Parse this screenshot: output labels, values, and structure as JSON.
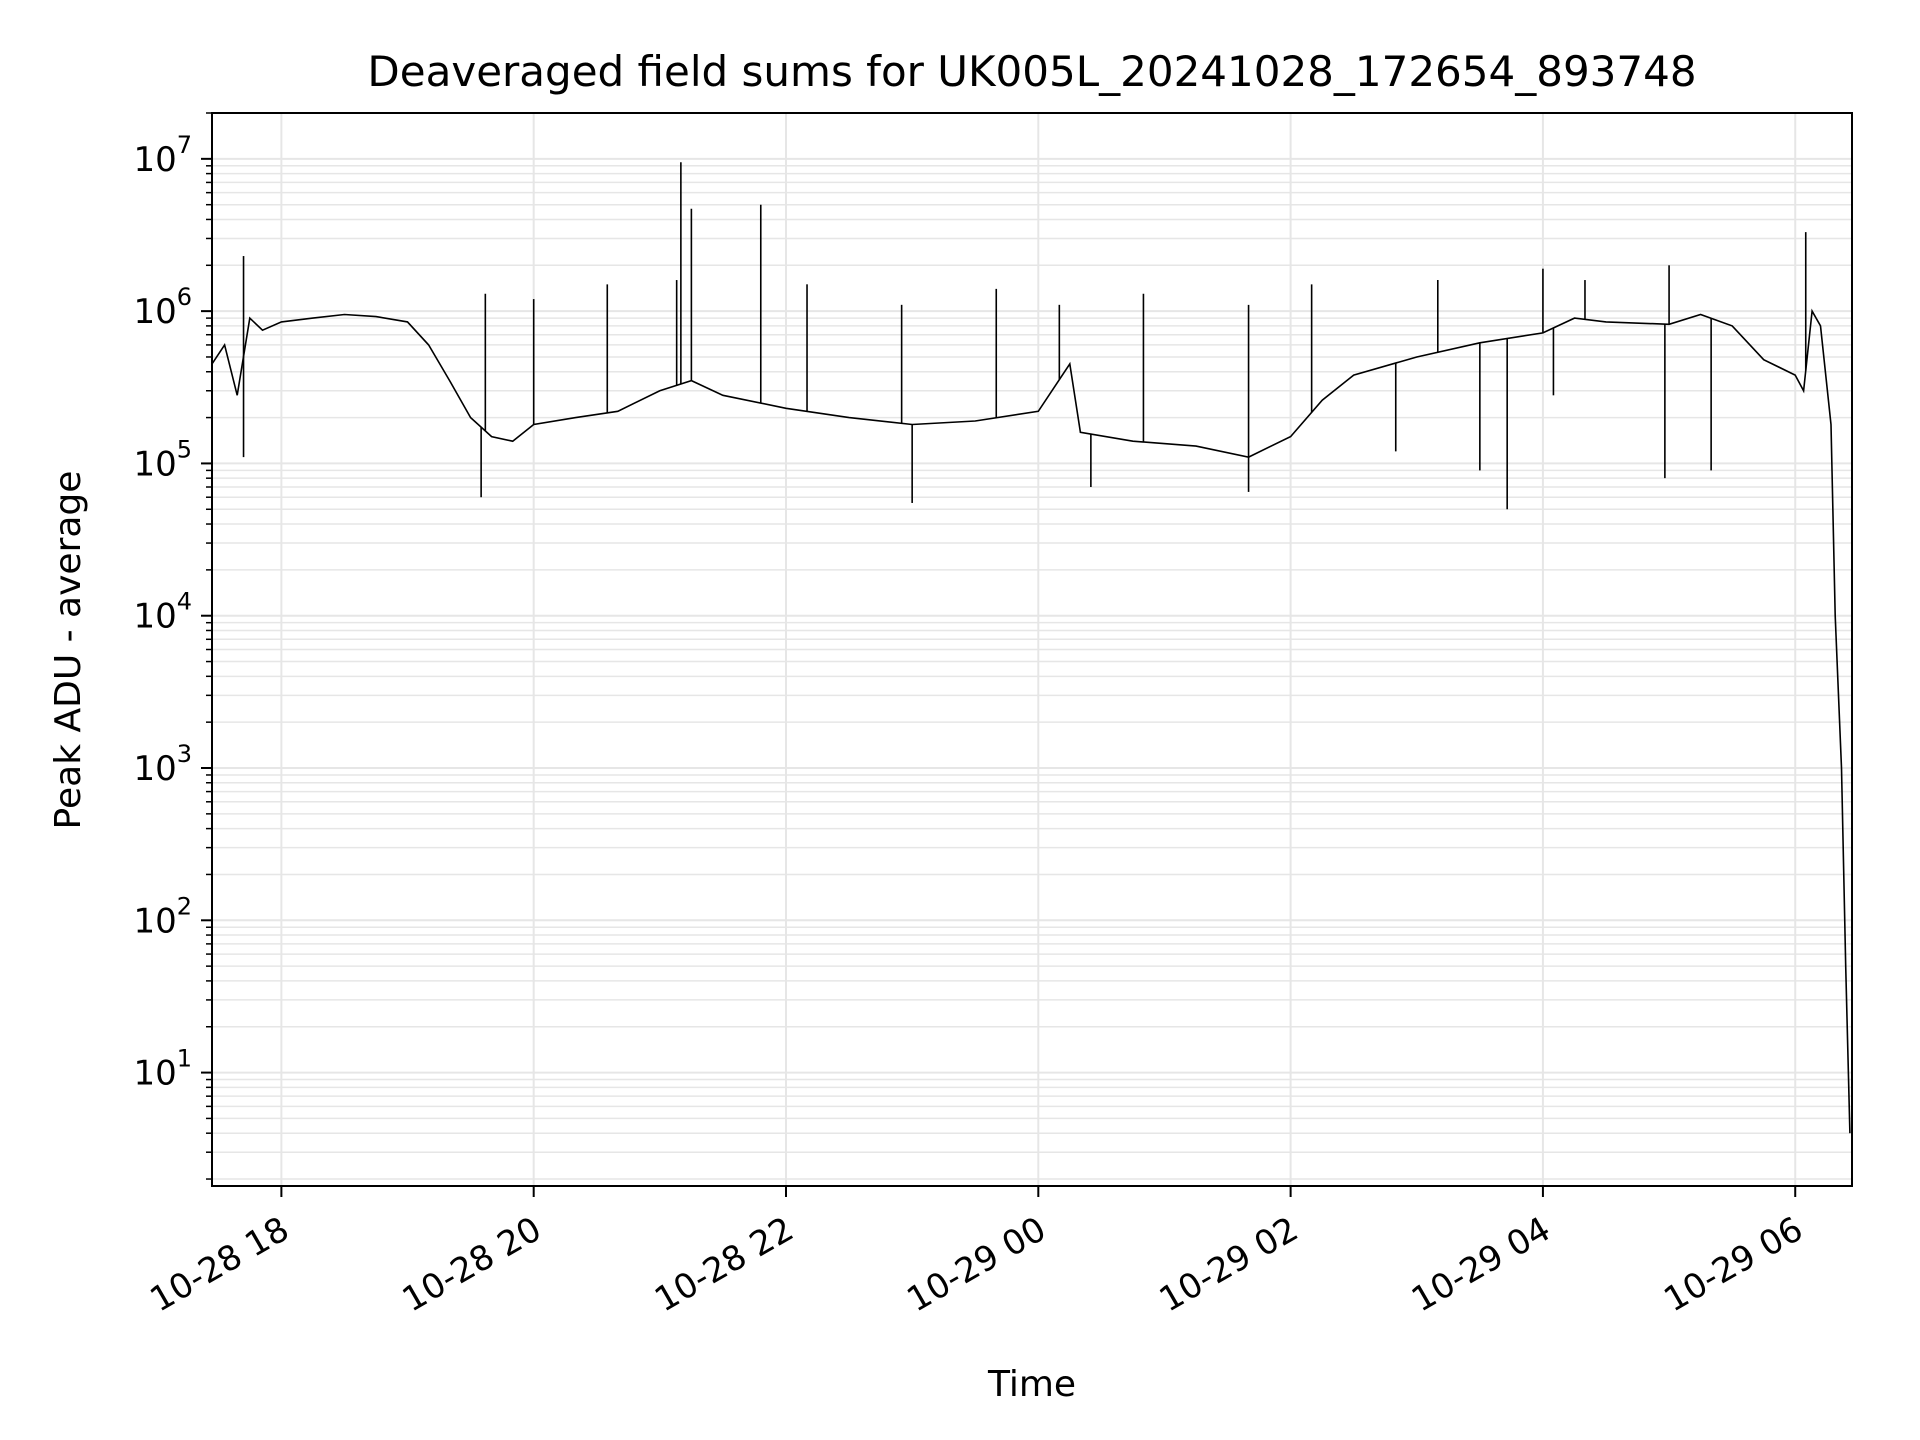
{
  "chart_data": {
    "type": "line",
    "title": "Deaveraged field sums for UK005L_20241028_172654_893748",
    "xlabel": "Time",
    "ylabel": "Peak ADU - average",
    "yscale": "log",
    "grid": true,
    "line_color": "#000000",
    "grid_color": "#e6e6e6",
    "xlim": [
      "2024-10-28 17:27",
      "2024-10-29 06:27"
    ],
    "ylim": [
      1.8,
      20000000
    ],
    "x_ticks": [
      {
        "t": "2024-10-28 18:00",
        "label": "10-28 18"
      },
      {
        "t": "2024-10-28 20:00",
        "label": "10-28 20"
      },
      {
        "t": "2024-10-28 22:00",
        "label": "10-28 22"
      },
      {
        "t": "2024-10-29 00:00",
        "label": "10-29 00"
      },
      {
        "t": "2024-10-29 02:00",
        "label": "10-29 02"
      },
      {
        "t": "2024-10-29 04:00",
        "label": "10-29 04"
      },
      {
        "t": "2024-10-29 06:00",
        "label": "10-29 06"
      }
    ],
    "y_ticks": [
      {
        "value": 10,
        "base": "10",
        "exp": "1"
      },
      {
        "value": 100,
        "base": "10",
        "exp": "2"
      },
      {
        "value": 1000,
        "base": "10",
        "exp": "3"
      },
      {
        "value": 10000,
        "base": "10",
        "exp": "4"
      },
      {
        "value": 100000,
        "base": "10",
        "exp": "5"
      },
      {
        "value": 1000000,
        "base": "10",
        "exp": "6"
      },
      {
        "value": 10000000,
        "base": "10",
        "exp": "7"
      }
    ],
    "series": [
      {
        "points": [
          [
            "2024-10-28 17:27",
            450000
          ],
          [
            "2024-10-28 17:33",
            600000
          ],
          [
            "2024-10-28 17:39",
            280000
          ],
          [
            "2024-10-28 17:45",
            900000
          ],
          [
            "2024-10-28 17:51",
            750000
          ],
          [
            "2024-10-28 18:00",
            850000
          ],
          [
            "2024-10-28 18:15",
            900000
          ],
          [
            "2024-10-28 18:30",
            950000
          ],
          [
            "2024-10-28 18:45",
            920000
          ],
          [
            "2024-10-28 19:00",
            850000
          ],
          [
            "2024-10-28 19:10",
            600000
          ],
          [
            "2024-10-28 19:20",
            350000
          ],
          [
            "2024-10-28 19:30",
            200000
          ],
          [
            "2024-10-28 19:40",
            150000
          ],
          [
            "2024-10-28 19:50",
            140000
          ],
          [
            "2024-10-28 20:00",
            180000
          ],
          [
            "2024-10-28 20:20",
            200000
          ],
          [
            "2024-10-28 20:40",
            220000
          ],
          [
            "2024-10-28 21:00",
            300000
          ],
          [
            "2024-10-28 21:15",
            350000
          ],
          [
            "2024-10-28 21:30",
            280000
          ],
          [
            "2024-10-28 22:00",
            230000
          ],
          [
            "2024-10-28 22:30",
            200000
          ],
          [
            "2024-10-28 23:00",
            180000
          ],
          [
            "2024-10-28 23:30",
            190000
          ],
          [
            "2024-10-29 00:00",
            220000
          ],
          [
            "2024-10-29 00:15",
            450000
          ],
          [
            "2024-10-29 00:20",
            160000
          ],
          [
            "2024-10-29 00:45",
            140000
          ],
          [
            "2024-10-29 01:15",
            130000
          ],
          [
            "2024-10-29 01:40",
            110000
          ],
          [
            "2024-10-29 02:00",
            150000
          ],
          [
            "2024-10-29 02:15",
            260000
          ],
          [
            "2024-10-29 02:30",
            380000
          ],
          [
            "2024-10-29 03:00",
            500000
          ],
          [
            "2024-10-29 03:30",
            620000
          ],
          [
            "2024-10-29 04:00",
            720000
          ],
          [
            "2024-10-29 04:15",
            900000
          ],
          [
            "2024-10-29 04:30",
            850000
          ],
          [
            "2024-10-29 05:00",
            820000
          ],
          [
            "2024-10-29 05:15",
            950000
          ],
          [
            "2024-10-29 05:30",
            800000
          ],
          [
            "2024-10-29 05:45",
            480000
          ],
          [
            "2024-10-29 06:00",
            380000
          ],
          [
            "2024-10-29 06:04",
            300000
          ],
          [
            "2024-10-29 06:08",
            1000000
          ],
          [
            "2024-10-29 06:12",
            800000
          ],
          [
            "2024-10-29 06:17",
            180000
          ],
          [
            "2024-10-29 06:19",
            10000
          ],
          [
            "2024-10-29 06:22",
            1000
          ],
          [
            "2024-10-29 06:24",
            50
          ],
          [
            "2024-10-29 06:26",
            4
          ]
        ]
      }
    ],
    "spikes": [
      [
        "2024-10-28 17:42",
        2300000
      ],
      [
        "2024-10-28 19:37",
        1300000
      ],
      [
        "2024-10-28 20:00",
        1200000
      ],
      [
        "2024-10-28 20:35",
        1500000
      ],
      [
        "2024-10-28 21:08",
        1600000
      ],
      [
        "2024-10-28 21:10",
        9500000
      ],
      [
        "2024-10-28 21:15",
        4700000
      ],
      [
        "2024-10-28 21:48",
        5000000
      ],
      [
        "2024-10-28 22:10",
        1500000
      ],
      [
        "2024-10-28 22:55",
        1100000
      ],
      [
        "2024-10-28 23:40",
        1400000
      ],
      [
        "2024-10-29 00:10",
        1100000
      ],
      [
        "2024-10-29 00:50",
        1300000
      ],
      [
        "2024-10-29 01:40",
        1100000
      ],
      [
        "2024-10-29 02:10",
        1500000
      ],
      [
        "2024-10-29 03:10",
        1600000
      ],
      [
        "2024-10-29 04:00",
        1900000
      ],
      [
        "2024-10-29 04:20",
        1600000
      ],
      [
        "2024-10-29 05:00",
        2000000
      ],
      [
        "2024-10-29 06:05",
        3300000
      ]
    ],
    "dips": [
      [
        "2024-10-28 17:42",
        110000
      ],
      [
        "2024-10-28 19:35",
        60000
      ],
      [
        "2024-10-28 23:00",
        55000
      ],
      [
        "2024-10-29 00:25",
        70000
      ],
      [
        "2024-10-29 01:40",
        65000
      ],
      [
        "2024-10-29 02:50",
        120000
      ],
      [
        "2024-10-29 03:30",
        90000
      ],
      [
        "2024-10-29 03:43",
        50000
      ],
      [
        "2024-10-29 04:05",
        280000
      ],
      [
        "2024-10-29 04:58",
        80000
      ],
      [
        "2024-10-29 05:20",
        90000
      ]
    ]
  }
}
